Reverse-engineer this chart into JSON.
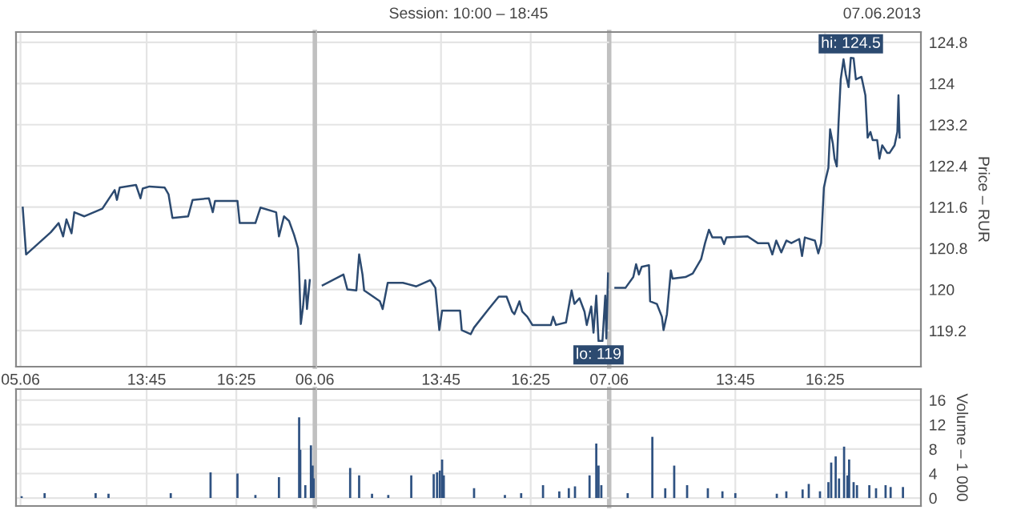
{
  "chart_data": [
    {
      "type": "line",
      "tick_labels": "x",
      "xlim": [
        "2013-06-05T09:52",
        "2013-06-05T18:45"
      ],
      "xticks": [
        {
          "value": "2013-06-05T10:00",
          "label": "05.06"
        },
        {
          "value": "2013-06-05T13:45",
          "label": "13:45"
        },
        {
          "value": "2013-06-05T16:25",
          "label": "16:25"
        }
      ],
      "ylim": [
        118.5,
        125.0
      ],
      "yticks": [
        119.2,
        120,
        120.8,
        121.6,
        122.4,
        123.2,
        124,
        124.8
      ],
      "grid": true,
      "ref_lines": [
        {
          "axis": "x",
          "value": "2013-06-05T18:45",
          "color": "#c0c0c0"
        }
      ],
      "series": [
        {
          "color": "#2c4a70",
          "x": [
            "2013-06-05T10:04",
            "2013-06-05T10:10",
            "2013-06-05T10:54",
            "2013-06-05T11:08",
            "2013-06-05T11:16",
            "2013-06-05T11:22",
            "2013-06-05T11:31",
            "2013-06-05T11:36",
            "2013-06-05T11:54",
            "2013-06-05T12:26",
            "2013-06-05T12:48",
            "2013-06-05T12:52",
            "2013-06-05T12:57",
            "2013-06-05T13:26",
            "2013-06-05T13:34",
            "2013-06-05T13:38",
            "2013-06-05T13:50",
            "2013-06-05T14:17",
            "2013-06-05T14:24",
            "2013-06-05T14:31",
            "2013-06-05T14:59",
            "2013-06-05T15:07",
            "2013-06-05T15:36",
            "2013-06-05T15:43",
            "2013-06-05T15:47",
            "2013-06-05T16:27",
            "2013-06-05T16:31",
            "2013-06-05T16:59",
            "2013-06-05T17:08",
            "2013-06-05T17:36",
            "2013-06-05T17:41",
            "2013-06-05T17:50",
            "2013-06-05T17:59",
            "2013-06-05T18:08",
            "2013-06-05T18:15",
            "2013-06-05T18:17",
            "2013-06-05T18:20",
            "2013-06-05T18:24",
            "2013-06-05T18:28",
            "2013-06-05T18:31",
            "2013-06-05T18:36"
          ],
          "values": [
            121.59,
            120.68,
            121.11,
            121.29,
            121.03,
            121.36,
            121.09,
            121.5,
            121.42,
            121.57,
            121.93,
            121.74,
            121.98,
            122.03,
            121.77,
            121.96,
            122.0,
            121.98,
            121.85,
            121.39,
            121.42,
            121.74,
            121.77,
            121.5,
            121.72,
            121.72,
            121.29,
            121.29,
            121.59,
            121.5,
            121.03,
            121.42,
            121.33,
            121.06,
            120.8,
            120.34,
            119.33,
            119.67,
            120.18,
            119.62,
            120.18
          ]
        }
      ]
    },
    {
      "type": "line",
      "tick_labels": "x",
      "title": "Session: 10:00 – 18:45",
      "annotations": [
        {
          "text": "lo: 119",
          "x": "2013-06-06T18:26",
          "y": 119.0
        }
      ],
      "xlim": [
        "2013-06-06T10:00",
        "2013-06-06T18:45"
      ],
      "xticks": [
        {
          "value": "2013-06-06T10:00",
          "label": "06.06"
        },
        {
          "value": "2013-06-06T13:45",
          "label": "13:45"
        },
        {
          "value": "2013-06-06T16:25",
          "label": "16:25"
        }
      ],
      "ylim": [
        118.5,
        125.0
      ],
      "yticks": [
        119.2,
        120,
        120.8,
        121.6,
        122.4,
        123.2,
        124,
        124.8
      ],
      "grid": true,
      "series": [
        {
          "color": "#2c4a70",
          "x": [
            "2013-06-06T10:14",
            "2013-06-06T10:51",
            "2013-06-06T10:58",
            "2013-06-06T11:14",
            "2013-06-06T11:19",
            "2013-06-06T11:25",
            "2013-06-06T11:28",
            "2013-06-06T11:56",
            "2013-06-06T12:01",
            "2013-06-06T12:10",
            "2013-06-06T12:37",
            "2013-06-06T13:01",
            "2013-06-06T13:26",
            "2013-06-06T13:35",
            "2013-06-06T13:42",
            "2013-06-06T13:47",
            "2013-06-06T14:19",
            "2013-06-06T14:22",
            "2013-06-06T14:38",
            "2013-06-06T14:44",
            "2013-06-06T15:10",
            "2013-06-06T15:28",
            "2013-06-06T15:42",
            "2013-06-06T15:52",
            "2013-06-06T15:56",
            "2013-06-06T16:05",
            "2013-06-06T16:10",
            "2013-06-06T16:19",
            "2013-06-06T16:28",
            "2013-06-06T17:01",
            "2013-06-06T17:05",
            "2013-06-06T17:10",
            "2013-06-06T17:28",
            "2013-06-06T17:33",
            "2013-06-06T17:38",
            "2013-06-06T17:43",
            "2013-06-06T17:52",
            "2013-06-06T18:01",
            "2013-06-06T18:05",
            "2013-06-06T18:13",
            "2013-06-06T18:17",
            "2013-06-06T18:22",
            "2013-06-06T18:26",
            "2013-06-06T18:33",
            "2013-06-06T18:38",
            "2013-06-06T18:40",
            "2013-06-06T18:43"
          ],
          "values": [
            120.08,
            120.29,
            120.0,
            119.98,
            120.68,
            120.29,
            119.98,
            119.77,
            119.62,
            120.13,
            120.13,
            120.06,
            120.18,
            120.03,
            119.21,
            119.59,
            119.59,
            119.21,
            119.13,
            119.26,
            119.62,
            119.86,
            119.86,
            119.57,
            119.52,
            119.77,
            119.57,
            119.47,
            119.31,
            119.31,
            119.47,
            119.31,
            119.36,
            119.67,
            119.98,
            119.72,
            119.83,
            119.57,
            119.31,
            119.67,
            119.16,
            119.88,
            119.0,
            119.0,
            119.88,
            119.05,
            120.31
          ]
        }
      ]
    },
    {
      "type": "line",
      "ylabel": "Price – RUR",
      "annotations": [
        "07.06.2013",
        {
          "text": "hi: 124.5",
          "x": "2013-06-07T17:11",
          "y": 124.5
        }
      ],
      "xlim": [
        "2013-06-07T10:00",
        "2013-06-07T19:16"
      ],
      "xticks": [
        {
          "value": "2013-06-07T10:00",
          "label": "07.06"
        },
        {
          "value": "2013-06-07T13:45",
          "label": "13:45"
        },
        {
          "value": "2013-06-07T16:25",
          "label": "16:25"
        }
      ],
      "ylim": [
        118.5,
        125.0
      ],
      "yticks": [
        119.2,
        120,
        120.8,
        121.6,
        122.4,
        123.2,
        124,
        124.8
      ],
      "grid": true,
      "ref_lines": [
        {
          "axis": "x",
          "value": "2013-06-07T10:00",
          "color": "#c0c0c0"
        }
      ],
      "series": [
        {
          "color": "#2c4a70",
          "x": [
            "2013-06-07T10:11",
            "2013-06-07T10:29",
            "2013-06-07T10:43",
            "2013-06-07T10:48",
            "2013-06-07T10:53",
            "2013-06-07T10:58",
            "2013-06-07T11:11",
            "2013-06-07T11:13",
            "2013-06-07T11:25",
            "2013-06-07T11:34",
            "2013-06-07T11:37",
            "2013-06-07T11:43",
            "2013-06-07T11:50",
            "2013-06-07T11:53",
            "2013-06-07T12:16",
            "2013-06-07T12:29",
            "2013-06-07T12:44",
            "2013-06-07T12:51",
            "2013-06-07T12:58",
            "2013-06-07T13:04",
            "2013-06-07T13:20",
            "2013-06-07T13:25",
            "2013-06-07T13:29",
            "2013-06-07T14:07",
            "2013-06-07T14:25",
            "2013-06-07T14:44",
            "2013-06-07T14:51",
            "2013-06-07T14:58",
            "2013-06-07T15:07",
            "2013-06-07T15:16",
            "2013-06-07T15:25",
            "2013-06-07T15:39",
            "2013-06-07T15:44",
            "2013-06-07T15:49",
            "2013-06-07T16:07",
            "2013-06-07T16:13",
            "2013-06-07T16:18",
            "2013-06-07T16:23",
            "2013-06-07T16:27",
            "2013-06-07T16:31",
            "2013-06-07T16:34",
            "2013-06-07T16:39",
            "2013-06-07T16:42",
            "2013-06-07T16:46",
            "2013-06-07T16:49",
            "2013-06-07T16:53",
            "2013-06-07T16:58",
            "2013-06-07T17:02",
            "2013-06-07T17:07",
            "2013-06-07T17:11",
            "2013-06-07T17:16",
            "2013-06-07T17:20",
            "2013-06-07T17:30",
            "2013-06-07T17:37",
            "2013-06-07T17:41",
            "2013-06-07T17:46",
            "2013-06-07T17:50",
            "2013-06-07T17:58",
            "2013-06-07T18:02",
            "2013-06-07T18:07",
            "2013-06-07T18:16",
            "2013-06-07T18:20",
            "2013-06-07T18:29",
            "2013-06-07T18:34",
            "2013-06-07T18:36",
            "2013-06-07T18:38"
          ],
          "values": [
            120.03,
            120.03,
            120.24,
            120.49,
            120.29,
            120.44,
            120.47,
            119.77,
            119.72,
            119.47,
            119.21,
            119.52,
            120.37,
            120.21,
            120.24,
            120.31,
            120.59,
            120.9,
            121.16,
            121.01,
            121.01,
            120.88,
            121.01,
            121.03,
            120.9,
            120.9,
            120.68,
            120.95,
            120.72,
            120.95,
            120.9,
            120.98,
            120.65,
            121.01,
            120.95,
            120.7,
            120.9,
            121.98,
            122.18,
            122.36,
            123.11,
            122.83,
            122.54,
            122.39,
            123.21,
            124.08,
            124.47,
            124.18,
            123.93,
            124.5,
            124.49,
            124.08,
            124.13,
            123.77,
            122.95,
            123.06,
            122.9,
            122.9,
            122.54,
            122.8,
            122.65,
            122.65,
            122.8,
            123.06,
            123.77,
            122.95
          ]
        }
      ]
    },
    {
      "type": "bar",
      "tick_labels": false,
      "xlim": [
        "2013-06-05T09:52",
        "2013-06-05T18:45"
      ],
      "xticks": [
        {
          "value": "2013-06-05T10:00",
          "label": null
        },
        {
          "value": "2013-06-05T13:45",
          "label": null
        },
        {
          "value": "2013-06-05T16:25",
          "label": null
        }
      ],
      "ylim": [
        -1.3,
        17.8
      ],
      "yticks": [
        0,
        4,
        8,
        12,
        16
      ],
      "grid": true,
      "ref_lines": [
        {
          "axis": "x",
          "value": "2013-06-05T18:45",
          "color": "#c0c0c0"
        }
      ],
      "series": [
        {
          "color": "#2f5282",
          "x": [
            "2013-06-05T10:02",
            "2013-06-05T10:43",
            "2013-06-05T12:14",
            "2013-06-05T12:37",
            "2013-06-05T14:28",
            "2013-06-05T15:39",
            "2013-06-05T16:27",
            "2013-06-05T16:59",
            "2013-06-05T17:41",
            "2013-06-05T18:17",
            "2013-06-05T18:19",
            "2013-06-05T18:28",
            "2013-06-05T18:38",
            "2013-06-05T18:41",
            "2013-06-05T18:43"
          ],
          "values": [
            0.3,
            0.8,
            0.8,
            0.7,
            0.8,
            4.2,
            4.0,
            0.5,
            3.4,
            13.2,
            7.9,
            2.1,
            8.6,
            5.3,
            3.2
          ]
        }
      ]
    },
    {
      "type": "bar",
      "tick_labels": false,
      "xlim": [
        "2013-06-06T10:00",
        "2013-06-06T18:45"
      ],
      "xticks": [
        {
          "value": "2013-06-06T10:00",
          "label": null
        },
        {
          "value": "2013-06-06T13:45",
          "label": null
        },
        {
          "value": "2013-06-06T16:25",
          "label": null
        }
      ],
      "ylim": [
        -1.3,
        17.8
      ],
      "yticks": [
        0,
        4,
        8,
        12,
        16
      ],
      "grid": true,
      "series": [
        {
          "color": "#2f5282",
          "x": [
            "2013-06-06T11:03",
            "2013-06-06T11:19",
            "2013-06-06T11:42",
            "2013-06-06T12:11",
            "2013-06-06T12:52",
            "2013-06-06T13:32",
            "2013-06-06T13:38",
            "2013-06-06T13:43",
            "2013-06-06T13:47",
            "2013-06-06T13:50",
            "2013-06-06T14:44",
            "2013-06-06T15:39",
            "2013-06-06T16:08",
            "2013-06-06T16:47",
            "2013-06-06T17:16",
            "2013-06-06T17:33",
            "2013-06-06T17:44",
            "2013-06-06T18:10",
            "2013-06-06T18:22",
            "2013-06-06T18:26",
            "2013-06-06T18:31"
          ],
          "values": [
            4.9,
            3.7,
            0.7,
            0.5,
            3.7,
            3.9,
            4.2,
            4.5,
            6.3,
            3.7,
            1.6,
            0.5,
            0.8,
            2.1,
            1.1,
            1.6,
            1.9,
            3.7,
            8.9,
            5.3,
            2.1
          ]
        }
      ]
    },
    {
      "type": "bar",
      "tick_labels": "y",
      "ylabel": "Volume – 1 000",
      "xlim": [
        "2013-06-07T10:00",
        "2013-06-07T19:16"
      ],
      "xticks": [
        {
          "value": "2013-06-07T10:00",
          "label": null
        },
        {
          "value": "2013-06-07T13:45",
          "label": null
        },
        {
          "value": "2013-06-07T16:25",
          "label": null
        }
      ],
      "ylim": [
        -1.3,
        17.8
      ],
      "yticks": [
        0,
        4,
        8,
        12,
        16
      ],
      "grid": true,
      "ref_lines": [
        {
          "axis": "x",
          "value": "2013-06-07T10:00",
          "color": "#c0c0c0"
        }
      ],
      "series": [
        {
          "color": "#2f5282",
          "x": [
            "2013-06-07T10:33",
            "2013-06-07T11:17",
            "2013-06-07T11:40",
            "2013-06-07T11:56",
            "2013-06-07T12:19",
            "2013-06-07T12:56",
            "2013-06-07T13:22",
            "2013-06-07T13:45",
            "2013-06-07T14:59",
            "2013-06-07T15:16",
            "2013-06-07T15:45",
            "2013-06-07T15:56",
            "2013-06-07T16:16",
            "2013-06-07T16:31",
            "2013-06-07T16:36",
            "2013-06-07T16:44",
            "2013-06-07T16:50",
            "2013-06-07T16:59",
            "2013-06-07T17:05",
            "2013-06-07T17:08",
            "2013-06-07T17:16",
            "2013-06-07T17:22",
            "2013-06-07T17:44",
            "2013-06-07T17:56",
            "2013-06-07T18:13",
            "2013-06-07T18:22",
            "2013-06-07T18:44"
          ],
          "values": [
            0.8,
            10.0,
            1.6,
            5.3,
            2.1,
            1.6,
            1.1,
            0.8,
            0.7,
            1.1,
            1.4,
            2.3,
            1.1,
            2.6,
            5.8,
            6.8,
            3.2,
            8.4,
            3.7,
            6.3,
            2.6,
            2.1,
            2.1,
            1.6,
            2.1,
            1.8,
            1.8
          ]
        }
      ]
    }
  ]
}
